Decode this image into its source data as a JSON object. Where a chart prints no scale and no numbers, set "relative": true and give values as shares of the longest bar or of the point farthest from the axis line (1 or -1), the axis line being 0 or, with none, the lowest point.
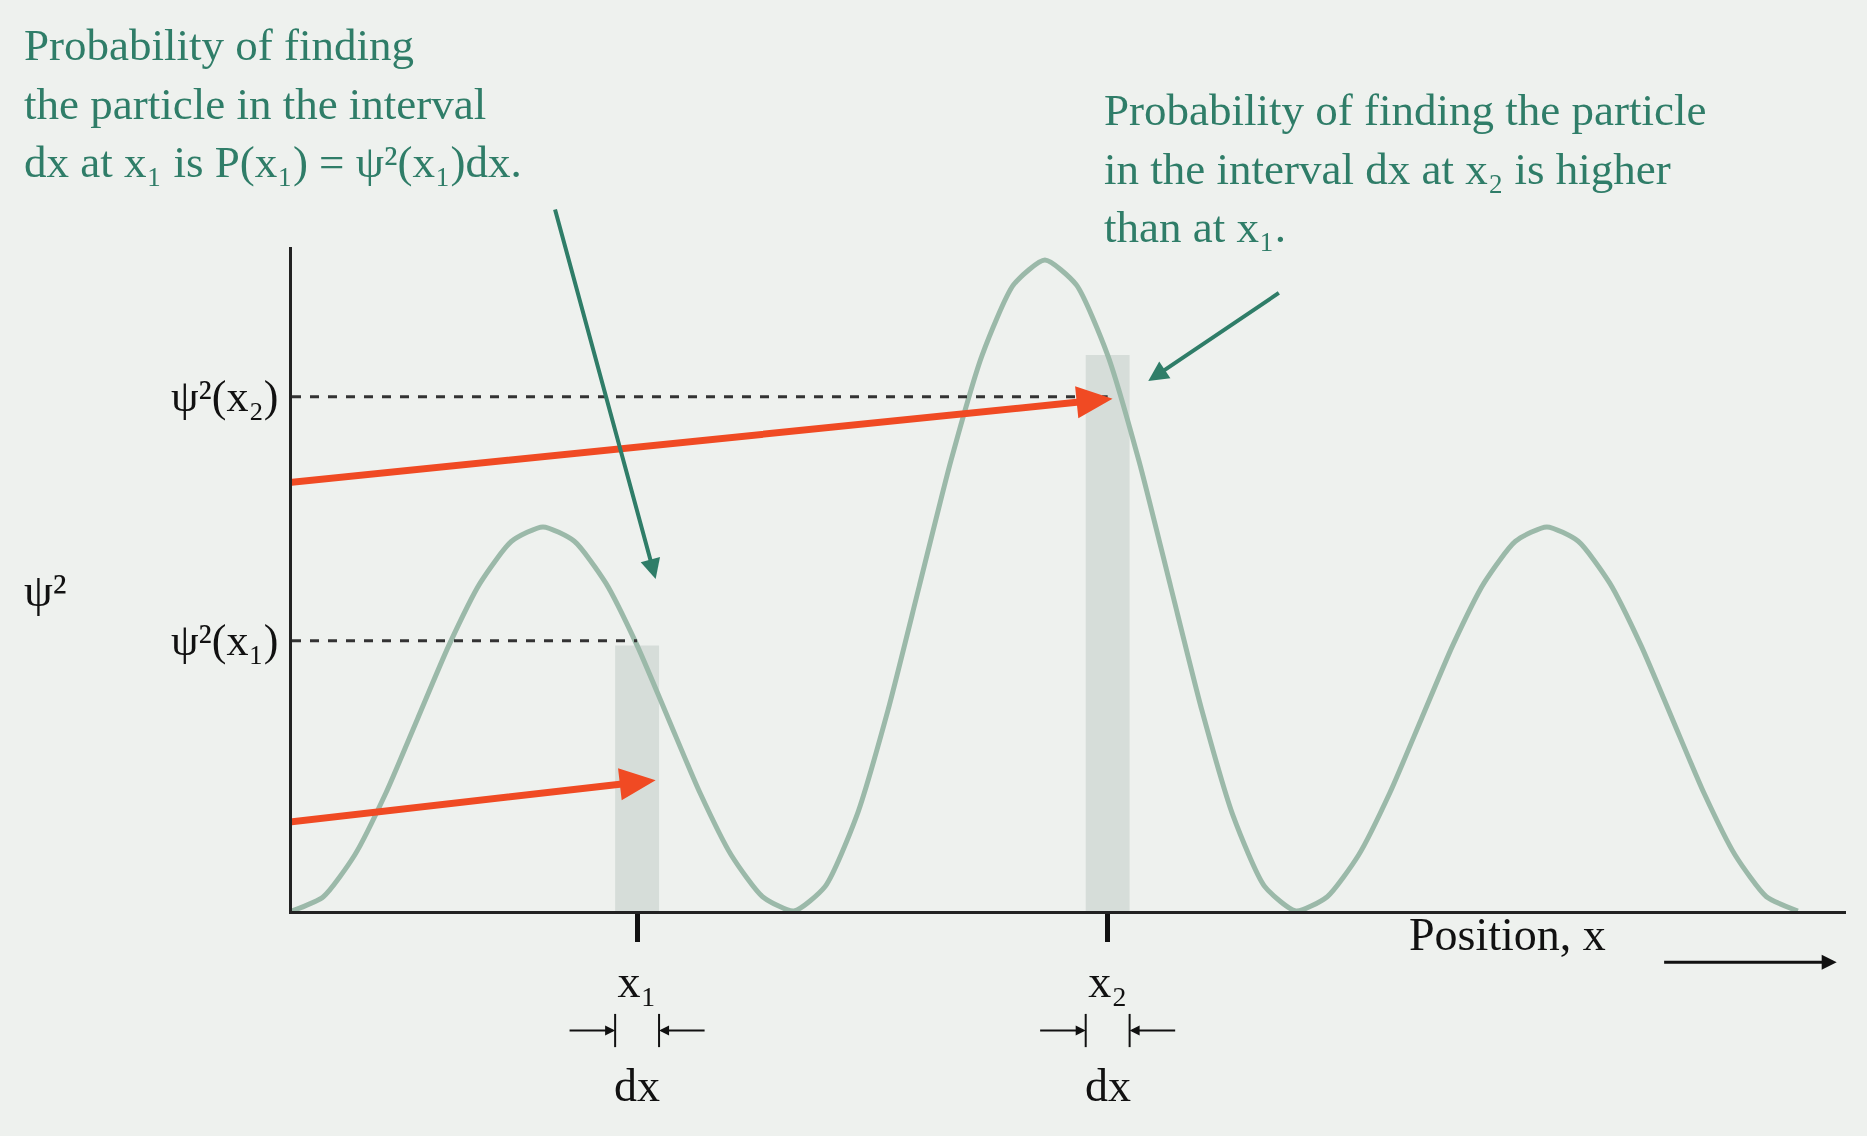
{
  "chart_data": {
    "type": "line",
    "relative": true,
    "xlabel": "Position, x",
    "ylabel": "ψ²",
    "categories": [
      null,
      null,
      null,
      null,
      null,
      null,
      null,
      null,
      null,
      null,
      null,
      "x₁",
      null,
      null,
      null,
      null,
      null,
      null,
      null,
      null,
      null,
      null,
      null,
      null,
      null,
      null,
      "x₂",
      null,
      null,
      null,
      null,
      null,
      null,
      null,
      null,
      null,
      null,
      null,
      null,
      null,
      null,
      null,
      null,
      null,
      null,
      null,
      null,
      null,
      null
    ],
    "series": [
      {
        "color": "#9bb9a9",
        "values": [
          0,
          0.022,
          0.086,
          0.182,
          0.295,
          0.408,
          0.504,
          0.568,
          0.59,
          0.568,
          0.504,
          0.408,
          0.295,
          0.182,
          0.086,
          0.022,
          0,
          0.038,
          0.146,
          0.309,
          0.5,
          0.691,
          0.854,
          0.962,
          1,
          0.962,
          0.854,
          0.691,
          0.5,
          0.309,
          0.146,
          0.038,
          0,
          0.022,
          0.086,
          0.182,
          0.295,
          0.408,
          0.504,
          0.568,
          0.59,
          0.568,
          0.504,
          0.408,
          0.295,
          0.182,
          0.086,
          0.022,
          0
        ]
      }
    ],
    "ref_lines": [
      {
        "axis": "y",
        "value": 0.79,
        "label": "ψ²(x₂)",
        "line_style": "dashed",
        "color": "#333333"
      },
      {
        "axis": "y",
        "value": 0.415,
        "label": "ψ²(x₁)",
        "line_style": "dashed",
        "color": "#333333"
      }
    ],
    "bands": [
      {
        "axis": "x",
        "from": "x₁",
        "to": "x₁",
        "color": "#d6ddd9"
      },
      {
        "axis": "x",
        "from": "x₂",
        "to": "x₂",
        "color": "#d6ddd9"
      }
    ],
    "annotations": [
      "Probability of finding\nthe particle in the interval\ndx at x₁ is P(x₁) = ψ²(x₁)dx.",
      "Probability of finding the particle\nin the interval dx at x₂ is higher\nthan at x₁.",
      "dx",
      "dx"
    ],
    "grid": false,
    "marker": "none",
    "line_style": "solid"
  }
}
